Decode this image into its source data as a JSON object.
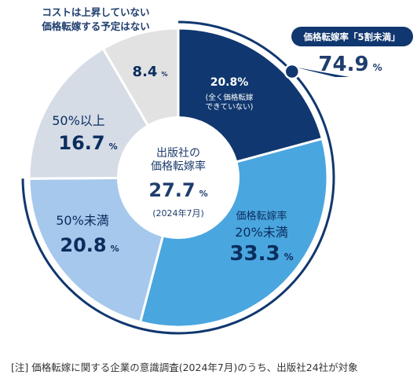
{
  "chart_data": {
    "type": "pie",
    "variant": "donut",
    "slices": [
      {
        "label": "20.8%",
        "sublabel_lines": [
          "(全く価格転嫁",
          "できていない)"
        ],
        "value": 20.8,
        "color": "#10376f",
        "text_color": "#ffffff"
      },
      {
        "label_lines": [
          "価格転嫁率",
          "20%未満"
        ],
        "value": 33.3,
        "value_label": "33.3",
        "color": "#4aa6df",
        "text_color": "#0b2d5e"
      },
      {
        "label_lines": [
          "50%未満"
        ],
        "value": 20.8,
        "value_label": "20.8",
        "color": "#a6c8ec",
        "text_color": "#0b2d5e"
      },
      {
        "label_lines": [
          "50%以上"
        ],
        "value": 16.7,
        "value_label": "16.7",
        "color": "#d5dce6",
        "text_color": "#0b2d5e"
      },
      {
        "label_lines": [],
        "value": 8.4,
        "value_label": "8.4",
        "color": "#e2e2e2",
        "text_color": "#0b2d5e"
      }
    ],
    "center": {
      "title_lines": [
        "出版社の",
        "価格転嫁率"
      ],
      "value": "27.7",
      "unit": "%",
      "note": "(2024年7月)"
    },
    "outside_label_lines": [
      "コストは上昇していない",
      "価格転嫁する予定はない"
    ],
    "callout": {
      "title": "価格転嫁率「5割未満」",
      "value": "74.9",
      "unit": "%"
    },
    "percent_sign": "%"
  },
  "footnote": "[注] 価格転嫁に関する企業の意識調査(2024年7月)のうち、出版社24社が対象"
}
